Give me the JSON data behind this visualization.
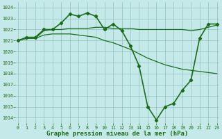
{
  "line1_x": [
    0,
    1,
    2,
    3,
    4,
    5,
    6,
    7,
    8,
    9,
    10,
    11,
    12,
    13,
    14,
    15,
    16,
    17,
    18,
    19,
    20,
    21,
    22,
    23
  ],
  "line1_y": [
    1021.0,
    1021.3,
    1021.3,
    1022.0,
    1022.0,
    1022.6,
    1023.4,
    1023.2,
    1023.5,
    1023.2,
    1022.0,
    1022.5,
    1021.9,
    1020.5,
    1018.7,
    1015.0,
    1013.8,
    1015.0,
    1015.3,
    1016.5,
    1017.4,
    1021.2,
    1022.5,
    1022.5
  ],
  "line2_x": [
    0,
    1,
    2,
    3,
    4,
    5,
    6,
    7,
    8,
    9,
    10,
    11,
    12,
    13,
    14,
    15,
    16,
    17,
    18,
    19,
    20,
    21,
    22,
    23
  ],
  "line2_y": [
    1021.0,
    1021.2,
    1021.2,
    1021.9,
    1022.0,
    1022.0,
    1022.1,
    1022.1,
    1022.1,
    1022.2,
    1022.2,
    1022.1,
    1022.1,
    1022.1,
    1022.0,
    1022.0,
    1022.0,
    1022.0,
    1022.0,
    1022.0,
    1021.9,
    1022.0,
    1022.2,
    1022.4
  ],
  "line3_x": [
    0,
    1,
    2,
    3,
    4,
    5,
    6,
    7,
    8,
    9,
    10,
    11,
    12,
    13,
    14,
    15,
    16,
    17,
    18,
    19,
    20,
    21,
    22,
    23
  ],
  "line3_y": [
    1021.0,
    1021.2,
    1021.2,
    1021.5,
    1021.6,
    1021.6,
    1021.6,
    1021.5,
    1021.4,
    1021.3,
    1021.0,
    1020.8,
    1020.5,
    1020.2,
    1019.8,
    1019.4,
    1019.1,
    1018.8,
    1018.6,
    1018.4,
    1018.3,
    1018.2,
    1018.1,
    1018.0
  ],
  "xlim": [
    -0.3,
    23.3
  ],
  "ylim": [
    1013.5,
    1024.5
  ],
  "yticks": [
    1014,
    1015,
    1016,
    1017,
    1018,
    1019,
    1020,
    1021,
    1022,
    1023,
    1024
  ],
  "xticks": [
    0,
    1,
    2,
    3,
    4,
    5,
    6,
    7,
    8,
    9,
    10,
    11,
    12,
    13,
    14,
    15,
    16,
    17,
    18,
    19,
    20,
    21,
    22,
    23
  ],
  "xlabel": "Graphe pression niveau de la mer (hPa)",
  "bg_color": "#c5e8e8",
  "grid_color": "#90c0c0",
  "line_color": "#1a6e1a",
  "tick_color": "#1a6e1a",
  "label_fontsize": 6.5,
  "tick_fontsize": 4.8,
  "marker": "D",
  "markersize": 2.2,
  "linewidth": 1.2
}
